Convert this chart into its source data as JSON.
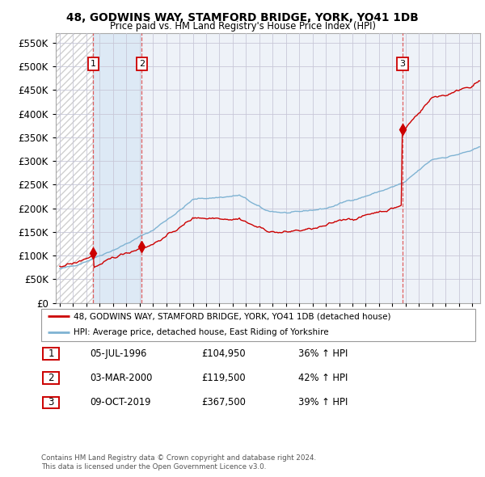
{
  "title": "48, GODWINS WAY, STAMFORD BRIDGE, YORK, YO41 1DB",
  "subtitle": "Price paid vs. HM Land Registry's House Price Index (HPI)",
  "xlim_start": 1993.7,
  "xlim_end": 2025.6,
  "ylim_min": 0,
  "ylim_max": 570000,
  "yticks": [
    0,
    50000,
    100000,
    150000,
    200000,
    250000,
    300000,
    350000,
    400000,
    450000,
    500000,
    550000
  ],
  "ytick_labels": [
    "£0",
    "£50K",
    "£100K",
    "£150K",
    "£200K",
    "£250K",
    "£300K",
    "£350K",
    "£400K",
    "£450K",
    "£500K",
    "£550K"
  ],
  "xtick_years": [
    1994,
    1995,
    1996,
    1997,
    1998,
    1999,
    2000,
    2001,
    2002,
    2003,
    2004,
    2005,
    2006,
    2007,
    2008,
    2009,
    2010,
    2011,
    2012,
    2013,
    2014,
    2015,
    2016,
    2017,
    2018,
    2019,
    2020,
    2021,
    2022,
    2023,
    2024,
    2025
  ],
  "sale_dates": [
    1996.51,
    2000.17,
    2019.77
  ],
  "sale_prices": [
    104950,
    119500,
    367500
  ],
  "sale_labels": [
    "1",
    "2",
    "3"
  ],
  "sale_date_strs": [
    "05-JUL-1996",
    "03-MAR-2000",
    "09-OCT-2019"
  ],
  "sale_price_strs": [
    "£104,950",
    "£119,500",
    "£367,500"
  ],
  "sale_pct_strs": [
    "36% ↑ HPI",
    "42% ↑ HPI",
    "39% ↑ HPI"
  ],
  "property_color": "#cc0000",
  "hpi_color": "#7fb3d3",
  "vline_color": "#dd4444",
  "label_box_edge": "#cc0000",
  "hatch_color": "#d0d0d0",
  "fill_color": "#dce8f5",
  "grid_color": "#c8c8d8",
  "plot_bg": "#eef2f8",
  "legend_property": "48, GODWINS WAY, STAMFORD BRIDGE, YORK, YO41 1DB (detached house)",
  "legend_hpi": "HPI: Average price, detached house, East Riding of Yorkshire",
  "footer1": "Contains HM Land Registry data © Crown copyright and database right 2024.",
  "footer2": "This data is licensed under the Open Government Licence v3.0."
}
